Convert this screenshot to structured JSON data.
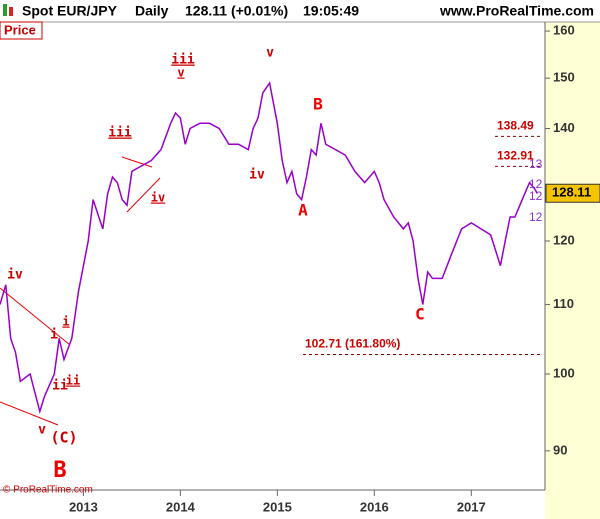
{
  "header": {
    "symbol": "Spot EUR/JPY",
    "period": "Daily",
    "quote": "128.11 (+0.01%)",
    "time": "19:05:49",
    "site": "www.ProRealTime.com"
  },
  "panel_label": "Price",
  "copyright": "© ProRealTime.com",
  "chart_data": {
    "type": "line",
    "log_scale": true,
    "x": [
      2012.14,
      2012.2,
      2012.25,
      2012.3,
      2012.35,
      2012.45,
      2012.55,
      2012.6,
      2012.7,
      2012.75,
      2012.8,
      2012.88,
      2012.95,
      2013.05,
      2013.1,
      2013.2,
      2013.25,
      2013.3,
      2013.35,
      2013.4,
      2013.45,
      2013.5,
      2013.6,
      2013.7,
      2013.8,
      2013.9,
      2013.95,
      2014.0,
      2014.05,
      2014.1,
      2014.2,
      2014.3,
      2014.4,
      2014.5,
      2014.6,
      2014.7,
      2014.75,
      2014.8,
      2014.85,
      2014.92,
      2015.0,
      2015.05,
      2015.1,
      2015.15,
      2015.2,
      2015.25,
      2015.3,
      2015.35,
      2015.4,
      2015.45,
      2015.5,
      2015.6,
      2015.7,
      2015.8,
      2015.9,
      2016.0,
      2016.05,
      2016.1,
      2016.2,
      2016.3,
      2016.35,
      2016.4,
      2016.45,
      2016.5,
      2016.55,
      2016.6,
      2016.7,
      2016.75,
      2016.8,
      2016.9,
      2017.0,
      2017.1,
      2017.2,
      2017.3,
      2017.35,
      2017.4,
      2017.45,
      2017.5,
      2017.55,
      2017.6,
      2017.65,
      2017.68
    ],
    "series": [
      {
        "name": "EUR/JPY",
        "color": "#9900cc",
        "values": [
          110,
          113,
          105,
          103,
          99,
          100,
          95,
          97,
          100,
          105,
          102,
          105,
          112,
          120,
          127,
          122,
          128,
          131,
          130,
          127,
          126,
          132,
          133,
          134,
          136,
          141,
          143,
          142,
          137,
          140,
          141,
          141,
          140,
          137,
          137,
          136,
          140,
          142,
          147,
          149,
          141,
          134,
          130,
          132,
          128,
          127,
          131,
          136,
          135,
          141,
          137,
          136,
          135,
          132,
          130,
          132,
          130,
          127,
          124,
          122,
          123,
          120,
          114,
          110,
          115,
          114,
          114,
          116,
          118,
          122,
          123,
          122,
          121,
          116,
          120,
          124,
          124,
          126,
          128,
          130,
          129,
          128.11
        ]
      }
    ],
    "xlim": [
      2012.14,
      2017.76
    ],
    "xticks": [
      2013,
      2014,
      2015,
      2016,
      2017
    ],
    "ylim": [
      85.3,
      162
    ],
    "yticks": [
      90,
      100,
      110,
      120,
      140,
      150,
      160
    ],
    "last_price": 128.11,
    "levels": [
      {
        "value": 138.49,
        "label": "138.49"
      },
      {
        "value": 132.91,
        "label": "132.91"
      },
      {
        "value": 102.71,
        "label": "102.71 (161.80%)"
      }
    ],
    "axis_tags": [
      "13",
      "12",
      "12",
      "12"
    ],
    "annotations": [
      "iv",
      "i",
      "ii",
      "v",
      "(C)",
      "B",
      "i",
      "ii",
      "iii",
      "iv",
      "iii",
      "v",
      "v",
      "iv",
      "B",
      "A",
      "C"
    ]
  }
}
